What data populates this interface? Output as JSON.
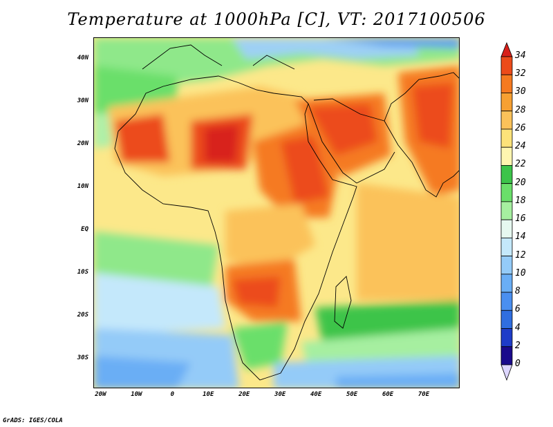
{
  "title": "Temperature at 1000hPa [C], VT: 2017100506",
  "credit": "GrADS: IGES/COLA",
  "map": {
    "lon_range": [
      -22,
      80
    ],
    "lat_range": [
      -37,
      45
    ],
    "lat_ticks": [
      {
        "value": 40,
        "label": "40N"
      },
      {
        "value": 30,
        "label": "30N"
      },
      {
        "value": 20,
        "label": "20N"
      },
      {
        "value": 10,
        "label": "10N"
      },
      {
        "value": 0,
        "label": "EQ"
      },
      {
        "value": -10,
        "label": "10S"
      },
      {
        "value": -20,
        "label": "20S"
      },
      {
        "value": -30,
        "label": "30S"
      }
    ],
    "lon_ticks": [
      {
        "value": -20,
        "label": "20W"
      },
      {
        "value": -10,
        "label": "10W"
      },
      {
        "value": 0,
        "label": "0"
      },
      {
        "value": 10,
        "label": "10E"
      },
      {
        "value": 20,
        "label": "20E"
      },
      {
        "value": 30,
        "label": "30E"
      },
      {
        "value": 40,
        "label": "40E"
      },
      {
        "value": 50,
        "label": "50E"
      },
      {
        "value": 60,
        "label": "60E"
      },
      {
        "value": 70,
        "label": "70E"
      }
    ]
  },
  "colorbar": {
    "levels": [
      0,
      2,
      4,
      6,
      8,
      10,
      12,
      14,
      16,
      18,
      20,
      22,
      24,
      26,
      28,
      30,
      32,
      34
    ],
    "colors": [
      "#1a0a8c",
      "#1e3cc8",
      "#2f6ee0",
      "#4a8ff0",
      "#6aaef5",
      "#94cbf8",
      "#c4e8fb",
      "#e6f8f0",
      "#a6efa0",
      "#6adf6a",
      "#3cc44a",
      "#fff6b0",
      "#fde27a",
      "#fbc25a",
      "#f6a032",
      "#f57a20",
      "#ec4b1a",
      "#d8201a"
    ],
    "top_arrow_color": "#d8201a",
    "bottom_arrow_color": "#ddd6ff"
  }
}
